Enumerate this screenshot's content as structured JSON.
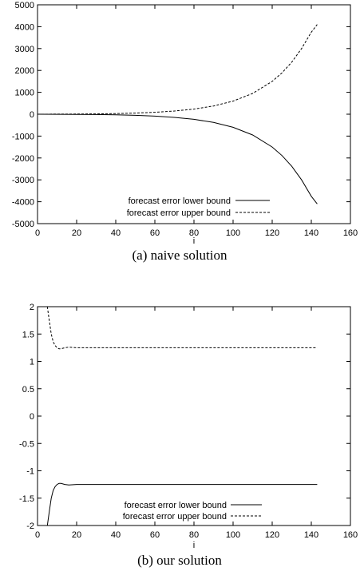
{
  "chart_data": [
    {
      "type": "line",
      "caption": "(a) naive solution",
      "xlabel": "i",
      "ylabel": "",
      "xlim": [
        0,
        160
      ],
      "ylim": [
        -5000,
        5000
      ],
      "x_ticks": [
        "0",
        "20",
        "40",
        "60",
        "80",
        "100",
        "120",
        "140",
        "160"
      ],
      "y_ticks": [
        "5000",
        "4000",
        "3000",
        "2000",
        "1000",
        "0",
        "-1000",
        "-2000",
        "-3000",
        "-4000",
        "-5000"
      ],
      "legend_position": "bottom-center",
      "series": [
        {
          "name": "forecast error lower bound",
          "style": "solid",
          "x": [
            0,
            10,
            20,
            30,
            40,
            50,
            60,
            70,
            80,
            90,
            100,
            110,
            120,
            125,
            130,
            135,
            140,
            143
          ],
          "y": [
            -1,
            -3,
            -8,
            -16,
            -30,
            -52,
            -88,
            -145,
            -235,
            -375,
            -600,
            -950,
            -1500,
            -1890,
            -2380,
            -3000,
            -3750,
            -4100
          ]
        },
        {
          "name": "forecast error upper bound",
          "style": "dashed",
          "x": [
            0,
            10,
            20,
            30,
            40,
            50,
            60,
            70,
            80,
            90,
            100,
            110,
            120,
            125,
            130,
            135,
            140,
            143
          ],
          "y": [
            1,
            3,
            8,
            16,
            30,
            52,
            88,
            145,
            235,
            375,
            600,
            950,
            1500,
            1890,
            2380,
            3000,
            3750,
            4100
          ]
        }
      ]
    },
    {
      "type": "line",
      "caption": "(b) our solution",
      "xlabel": "i",
      "ylabel": "",
      "xlim": [
        0,
        160
      ],
      "ylim": [
        -2,
        2
      ],
      "x_ticks": [
        "0",
        "20",
        "40",
        "60",
        "80",
        "100",
        "120",
        "140",
        "160"
      ],
      "y_ticks": [
        "2",
        "1.5",
        "1",
        "0.5",
        "0",
        "-0.5",
        "-1",
        "-1.5",
        "-2"
      ],
      "legend_position": "bottom-center",
      "series": [
        {
          "name": "forecast error lower bound",
          "style": "solid",
          "x": [
            5,
            6,
            7,
            8,
            9,
            10,
            11,
            12,
            14,
            16,
            20,
            30,
            60,
            100,
            143
          ],
          "y": [
            -2.0,
            -1.75,
            -1.5,
            -1.36,
            -1.29,
            -1.25,
            -1.23,
            -1.23,
            -1.25,
            -1.26,
            -1.25,
            -1.25,
            -1.25,
            -1.25,
            -1.25
          ]
        },
        {
          "name": "forecast error upper bound",
          "style": "dashed",
          "x": [
            5,
            6,
            7,
            8,
            9,
            10,
            11,
            12,
            14,
            16,
            20,
            30,
            60,
            100,
            143
          ],
          "y": [
            2.0,
            1.75,
            1.5,
            1.36,
            1.29,
            1.25,
            1.23,
            1.23,
            1.25,
            1.26,
            1.25,
            1.25,
            1.25,
            1.25,
            1.25
          ]
        }
      ]
    }
  ]
}
